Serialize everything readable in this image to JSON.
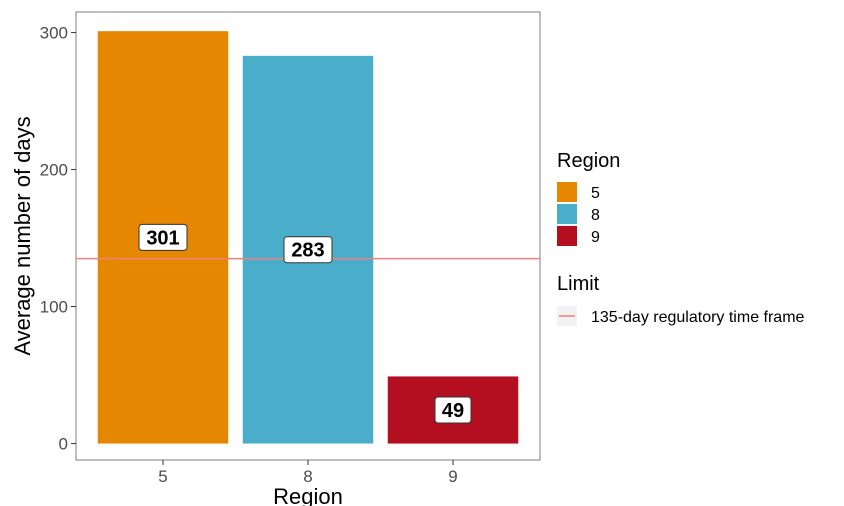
{
  "chart_data": {
    "type": "bar",
    "xlabel": "Region",
    "ylabel": "Average number of days",
    "categories": [
      "5",
      "8",
      "9"
    ],
    "values": [
      301,
      283,
      49
    ],
    "colors": [
      "#E58700",
      "#4AAECA",
      "#B30F20"
    ],
    "value_labels": [
      "301",
      "283",
      "49"
    ],
    "ylim": [
      -12,
      315
    ],
    "yticks": [
      0,
      100,
      200,
      300
    ],
    "ytick_labels": [
      "0",
      "100",
      "200",
      "300"
    ],
    "grid": false,
    "reference_line": {
      "value": 135,
      "color": "#F08080"
    },
    "legends": [
      {
        "title": "Region",
        "items": [
          "5",
          "8",
          "9"
        ],
        "placement": "right"
      },
      {
        "title": "Limit",
        "items": [
          "135-day regulatory time frame"
        ],
        "placement": "right"
      }
    ]
  }
}
